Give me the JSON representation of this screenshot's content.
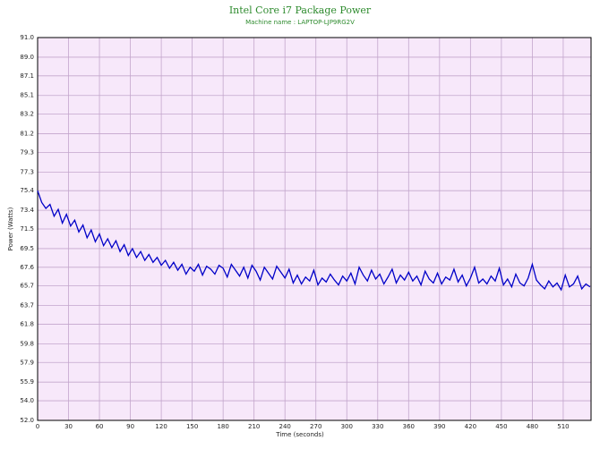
{
  "chart_data": {
    "type": "line",
    "title": "Intel Core i7 Package Power",
    "subtitle": "Machine name : LAPTOP-LJP9RG2V",
    "x_label": "Time (seconds)",
    "y_label": "Power (Watts)",
    "xlim": [
      0,
      537
    ],
    "xticks": [
      0,
      30,
      60,
      90,
      120,
      150,
      180,
      210,
      240,
      270,
      300,
      330,
      360,
      390,
      420,
      450,
      480,
      510
    ],
    "ylim": [
      52,
      91
    ],
    "yticks": [
      {
        "value": 52,
        "label": "52.0"
      },
      {
        "value": 54,
        "label": "54.0"
      },
      55.9,
      57.9,
      59.8,
      61.8,
      63.7,
      65.7,
      67.6,
      69.5,
      71.5,
      73.4,
      75.4,
      77.3,
      79.3,
      81.2,
      83.2,
      85.1,
      87.1,
      {
        "value": 89,
        "label": "89.0"
      },
      {
        "value": 91,
        "label": "91.0"
      }
    ],
    "grid": true,
    "background": "#f7e8fa",
    "grid_color": "#c3a6cc",
    "x": [
      0,
      4,
      8,
      12,
      16,
      20,
      24,
      28,
      32,
      36,
      40,
      44,
      48,
      52,
      56,
      60,
      64,
      68,
      72,
      76,
      80,
      84,
      88,
      92,
      96,
      100,
      104,
      108,
      112,
      116,
      120,
      124,
      128,
      132,
      136,
      140,
      144,
      148,
      152,
      156,
      160,
      164,
      168,
      172,
      176,
      180,
      184,
      188,
      192,
      196,
      200,
      204,
      208,
      212,
      216,
      220,
      224,
      228,
      232,
      236,
      240,
      244,
      248,
      252,
      256,
      260,
      264,
      268,
      272,
      276,
      280,
      284,
      288,
      292,
      296,
      300,
      304,
      308,
      312,
      316,
      320,
      324,
      328,
      332,
      336,
      340,
      344,
      348,
      352,
      356,
      360,
      364,
      368,
      372,
      376,
      380,
      384,
      388,
      392,
      396,
      400,
      404,
      408,
      412,
      416,
      420,
      424,
      428,
      432,
      436,
      440,
      444,
      448,
      452,
      456,
      460,
      464,
      468,
      472,
      476,
      480,
      484,
      488,
      492,
      496,
      500,
      504,
      508,
      512,
      516,
      520,
      524,
      528,
      532,
      536
    ],
    "series": [
      {
        "color": "#0000c8",
        "values": [
          75.4,
          74.2,
          73.6,
          74.0,
          72.8,
          73.5,
          72.1,
          73.0,
          71.8,
          72.4,
          71.2,
          71.9,
          70.6,
          71.4,
          70.2,
          71.0,
          69.8,
          70.5,
          69.6,
          70.3,
          69.2,
          69.9,
          68.8,
          69.5,
          68.6,
          69.2,
          68.3,
          68.9,
          68.1,
          68.6,
          67.8,
          68.3,
          67.5,
          68.1,
          67.3,
          67.9,
          66.9,
          67.6,
          67.2,
          67.9,
          66.8,
          67.7,
          67.4,
          66.9,
          67.8,
          67.5,
          66.6,
          67.9,
          67.3,
          66.7,
          67.6,
          66.5,
          67.8,
          67.2,
          66.3,
          67.6,
          67.0,
          66.4,
          67.7,
          67.1,
          66.5,
          67.4,
          66.0,
          66.8,
          65.9,
          66.6,
          66.2,
          67.3,
          65.8,
          66.5,
          66.1,
          66.9,
          66.3,
          65.8,
          66.7,
          66.2,
          67.0,
          65.9,
          67.6,
          66.8,
          66.2,
          67.3,
          66.4,
          66.9,
          65.9,
          66.6,
          67.4,
          66.0,
          66.8,
          66.3,
          67.1,
          66.2,
          66.7,
          65.8,
          67.2,
          66.4,
          66.0,
          67.0,
          65.9,
          66.6,
          66.3,
          67.4,
          66.1,
          66.8,
          65.7,
          66.5,
          67.6,
          66.0,
          66.4,
          65.9,
          66.7,
          66.2,
          67.5,
          65.8,
          66.4,
          65.6,
          66.9,
          66.0,
          65.7,
          66.5,
          67.9,
          66.3,
          65.8,
          65.4,
          66.2,
          65.6,
          66.0,
          65.3,
          66.8,
          65.6,
          65.9,
          66.7,
          65.4,
          65.9,
          65.6
        ]
      }
    ]
  }
}
